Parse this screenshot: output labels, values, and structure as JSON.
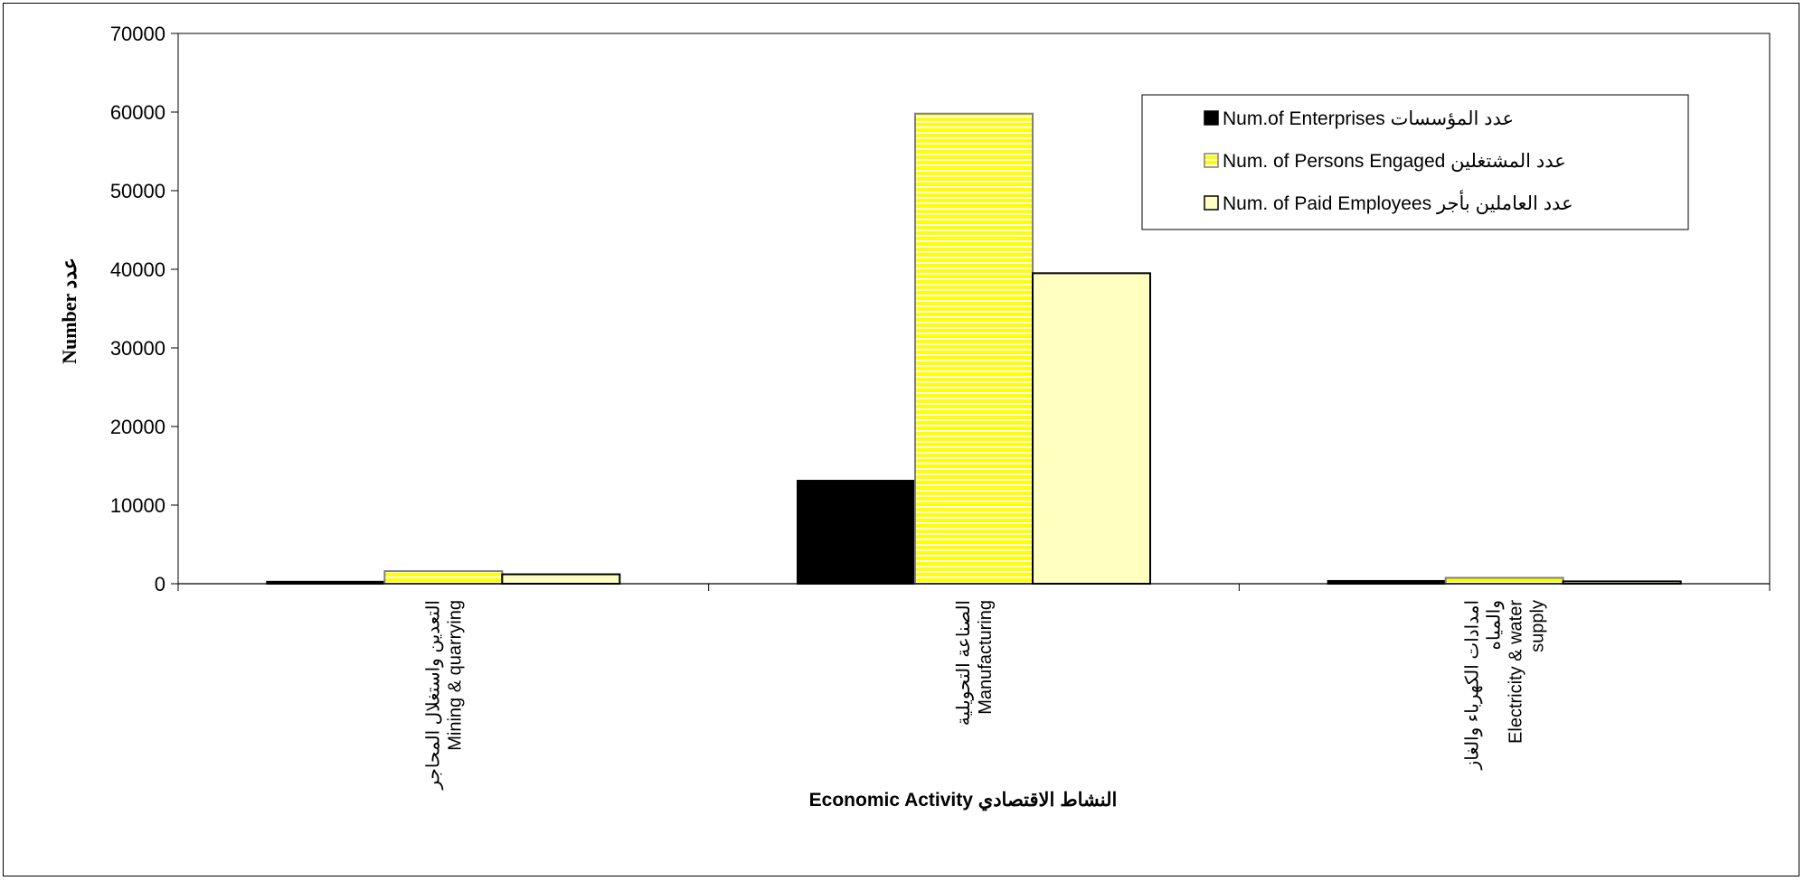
{
  "chart_data": {
    "type": "bar",
    "categories": [
      [
        "التعدين واستغلال المحاجر",
        "Mining & quarrying"
      ],
      [
        "الصناعة التحويلية",
        "Manufacturing"
      ],
      [
        "امدادات الكهرباء والغاز",
        "والمياه",
        "Electricity & water",
        "supply"
      ]
    ],
    "series": [
      {
        "name": "Num.of Enterprises  عدد المؤسسات",
        "values": [
          250,
          13100,
          350
        ],
        "color": "#000000",
        "pattern": "solid"
      },
      {
        "name": "Num. of Persons  Engaged عدد المشتغلين",
        "values": [
          1600,
          59800,
          750
        ],
        "color": "#ffff00",
        "pattern": "horizontal-stripes"
      },
      {
        "name": "Num. of Paid Employees عدد العاملين بأجر",
        "values": [
          1200,
          39500,
          300
        ],
        "color": "#ffffc0",
        "pattern": "solid"
      }
    ],
    "xlabel": "النشاط الاقتصادي Economic Activity",
    "ylabel": "Number عدد",
    "ylim": [
      0,
      70000
    ],
    "yticks": [
      0,
      10000,
      20000,
      30000,
      40000,
      50000,
      60000,
      70000
    ],
    "grid": false,
    "legend_position": "top-right"
  }
}
